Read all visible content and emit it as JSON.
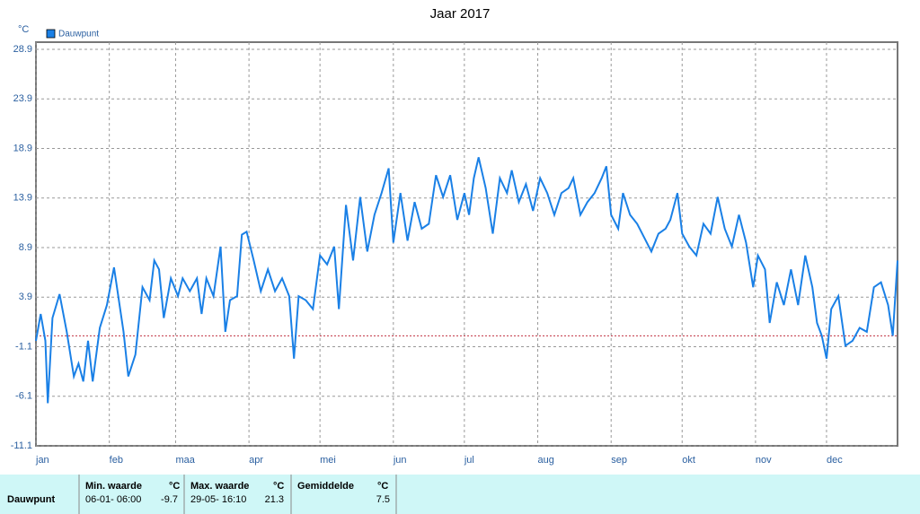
{
  "chart_data": {
    "type": "line",
    "title": "Jaar 2017",
    "y_unit": "°C",
    "x": [
      0,
      2,
      4,
      5,
      7,
      10,
      13,
      16,
      18,
      20,
      22,
      24,
      27,
      30,
      33,
      37,
      39,
      42,
      45,
      48,
      50,
      52,
      54,
      57,
      60,
      62,
      65,
      68,
      70,
      72,
      75,
      78,
      80,
      82,
      85,
      87,
      89,
      92,
      95,
      98,
      101,
      104,
      107,
      109,
      111,
      114,
      117,
      120,
      123,
      126,
      128,
      131,
      134,
      137,
      140,
      143,
      146,
      149,
      151,
      154,
      157,
      160,
      163,
      166,
      169,
      172,
      175,
      178,
      181,
      183,
      185,
      187,
      190,
      193,
      196,
      199,
      201,
      204,
      207,
      210,
      213,
      216,
      219,
      222,
      225,
      227,
      230,
      233,
      236,
      239,
      241,
      243,
      246,
      248,
      251,
      254,
      257,
      260,
      263,
      266,
      268,
      271,
      273,
      276,
      279,
      282,
      285,
      288,
      291,
      294,
      297,
      300,
      303,
      305,
      308,
      310,
      313,
      316,
      319,
      322,
      325,
      328,
      330,
      332,
      334,
      336,
      339,
      342,
      345,
      348,
      351,
      354,
      357,
      360,
      362,
      364
    ],
    "series": [
      {
        "name": "Dauwpunt",
        "color": "#1a80e6",
        "values": [
          -0.5,
          2.2,
          -0.5,
          -6.8,
          1.8,
          4.2,
          0.4,
          -4.1,
          -2.8,
          -4.6,
          -0.5,
          -4.6,
          0.8,
          3.1,
          6.9,
          0.4,
          -4.1,
          -1.9,
          4.9,
          3.6,
          7.6,
          6.7,
          1.8,
          5.8,
          4.0,
          5.8,
          4.5,
          5.8,
          2.2,
          5.8,
          4.0,
          9.0,
          0.4,
          3.6,
          4.0,
          10.2,
          10.5,
          7.6,
          4.5,
          6.7,
          4.5,
          5.8,
          4.0,
          -2.3,
          4.0,
          3.6,
          2.7,
          8.1,
          7.2,
          9.0,
          2.7,
          13.2,
          7.6,
          14.0,
          8.5,
          12.2,
          14.4,
          16.9,
          9.4,
          14.4,
          9.6,
          13.5,
          10.8,
          11.3,
          16.2,
          14.0,
          16.2,
          11.7,
          14.4,
          12.2,
          15.9,
          18.0,
          14.9,
          10.3,
          15.9,
          14.4,
          16.7,
          13.5,
          15.3,
          12.6,
          15.9,
          14.4,
          12.2,
          14.4,
          14.9,
          15.9,
          12.2,
          13.5,
          14.4,
          15.9,
          17.1,
          12.2,
          10.8,
          14.4,
          12.2,
          11.3,
          9.9,
          8.5,
          10.3,
          10.8,
          11.7,
          14.4,
          10.3,
          9.0,
          8.1,
          11.3,
          10.3,
          14.0,
          10.8,
          9.0,
          12.2,
          9.4,
          4.9,
          8.1,
          6.7,
          1.3,
          5.4,
          3.1,
          6.7,
          3.1,
          8.1,
          4.9,
          1.3,
          0.0,
          -2.3,
          2.7,
          4.0,
          -1.0,
          -0.5,
          0.8,
          0.4,
          4.9,
          5.4,
          3.1,
          0.0,
          7.6
        ]
      }
    ],
    "xlim": [
      0,
      364
    ],
    "xticks": [
      {
        "value": 0,
        "label": "jan"
      },
      {
        "value": 31,
        "label": "feb"
      },
      {
        "value": 59,
        "label": "maa"
      },
      {
        "value": 90,
        "label": "apr"
      },
      {
        "value": 120,
        "label": "mei"
      },
      {
        "value": 151,
        "label": "jun"
      },
      {
        "value": 181,
        "label": "jul"
      },
      {
        "value": 212,
        "label": "aug"
      },
      {
        "value": 243,
        "label": "sep"
      },
      {
        "value": 273,
        "label": "okt"
      },
      {
        "value": 304,
        "label": "nov"
      },
      {
        "value": 334,
        "label": "dec"
      }
    ],
    "ylim": [
      -11.1,
      28.9
    ],
    "yticks": [
      -11.1,
      -6.1,
      -1.1,
      3.9,
      8.9,
      13.9,
      18.9,
      23.9,
      28.9
    ],
    "grid": true,
    "zero_line": true
  },
  "table": {
    "headers": [
      "Min. waarde",
      "°C",
      "Max. waarde",
      "°C",
      "Gemiddelde",
      "°C"
    ],
    "rows": [
      [
        "Dauwpunt",
        "06-01- 06:00",
        "-9.7",
        "29-05- 16:10",
        "21.3",
        "7.5"
      ]
    ]
  }
}
